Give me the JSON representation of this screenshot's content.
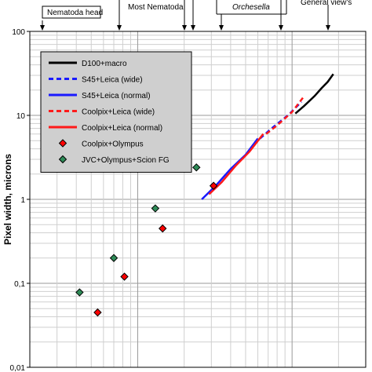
{
  "chart_data": {
    "type": "scatter",
    "title": "",
    "xlabel": "",
    "ylabel": "Pixel width, microns",
    "yscale": "log",
    "xscale": "log",
    "ylim": [
      0.01,
      100
    ],
    "yticks": [
      "0,01",
      "0,1",
      "1",
      "10",
      "100"
    ],
    "grid": true,
    "legend_position": "top-left",
    "annotations": [
      {
        "label": "Nematoda head",
        "italic": false
      },
      {
        "label": "Most Nematoda",
        "italic": false
      },
      {
        "label": "",
        "italic": false
      },
      {
        "label": "",
        "italic": false
      },
      {
        "label": "Orchesella",
        "italic": true
      },
      {
        "label": "General view's",
        "italic": false
      }
    ],
    "series": [
      {
        "name": "D100+macro",
        "kind": "line",
        "dash": "solid",
        "color": "#000000",
        "points": [
          [
            10.5,
            10.5
          ],
          [
            12,
            13
          ],
          [
            14,
            17
          ],
          [
            15.5,
            21
          ],
          [
            17,
            25
          ],
          [
            18.5,
            31
          ]
        ]
      },
      {
        "name": "S45+Leica (wide)",
        "kind": "line",
        "dash": "dashed",
        "color": "#1a1aff",
        "points": [
          [
            6.2,
            5.3
          ],
          [
            7.5,
            7.2
          ],
          [
            9.5,
            10.2
          ],
          [
            11.5,
            14.5
          ]
        ]
      },
      {
        "name": "S45+Leica (normal)",
        "kind": "line",
        "dash": "solid",
        "color": "#1a1aff",
        "points": [
          [
            2.6,
            1.0
          ],
          [
            3.2,
            1.45
          ],
          [
            4.0,
            2.3
          ],
          [
            5.0,
            3.4
          ],
          [
            6.0,
            5.3
          ]
        ]
      },
      {
        "name": "Coolpix+Leica (wide)",
        "kind": "line",
        "dash": "dashed",
        "color": "#ff1a1a",
        "points": [
          [
            6.8,
            6.0
          ],
          [
            8.0,
            7.6
          ],
          [
            10.0,
            11.0
          ],
          [
            12.0,
            17.0
          ]
        ]
      },
      {
        "name": "Coolpix+Leica (normal)",
        "kind": "line",
        "dash": "solid",
        "color": "#ff1a1a",
        "points": [
          [
            2.9,
            1.15
          ],
          [
            3.5,
            1.6
          ],
          [
            4.3,
            2.5
          ],
          [
            5.3,
            3.7
          ],
          [
            6.5,
            6.0
          ]
        ]
      },
      {
        "name": "Coolpix+Olympus",
        "kind": "marker",
        "color": "#ff0000",
        "points": [
          [
            0.55,
            0.045
          ],
          [
            0.82,
            0.12
          ],
          [
            1.45,
            0.45
          ],
          [
            3.1,
            1.45
          ]
        ]
      },
      {
        "name": "JVC+Olympus+Scion FG",
        "kind": "marker",
        "color": "#2e8b57",
        "points": [
          [
            0.42,
            0.078
          ],
          [
            0.7,
            0.2
          ],
          [
            1.3,
            0.78
          ],
          [
            2.4,
            2.4
          ]
        ]
      }
    ]
  }
}
